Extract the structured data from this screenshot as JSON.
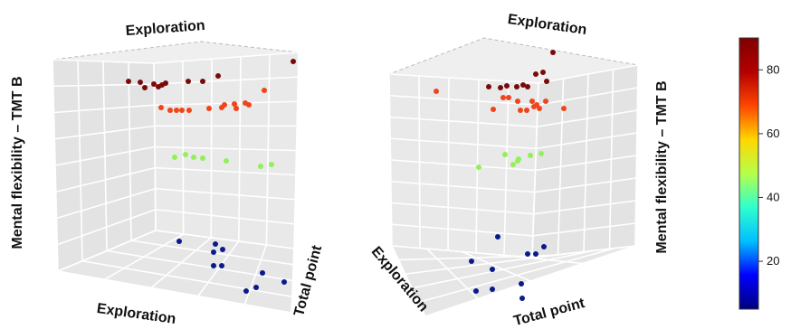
{
  "chart_data": [
    {
      "type": "scatter3d",
      "axis_labels": {
        "x": "Exploration",
        "y": "Total point",
        "z": "Mental flexibility – TMT B",
        "top": "Exploration"
      },
      "grid": true,
      "color_by": "z",
      "groups": [
        {
          "z": 85,
          "color": "#7a0a0a",
          "count": 10
        },
        {
          "z": 75,
          "color": "#f0441a",
          "count": 13
        },
        {
          "z": 55,
          "color": "#93f05a",
          "count": 7
        },
        {
          "z": 15,
          "color": "#0a1a8c",
          "count": 10
        }
      ]
    },
    {
      "type": "scatter3d",
      "axis_labels": {
        "x": "Exploration",
        "y": "Total point",
        "z": "Mental flexibility – TMT B",
        "top": "Exploration"
      },
      "grid": true,
      "color_by": "z",
      "groups": [
        {
          "z": 85,
          "color": "#7a0a0a",
          "count": 10
        },
        {
          "z": 75,
          "color": "#f0441a",
          "count": 13
        },
        {
          "z": 55,
          "color": "#93f05a",
          "count": 7
        },
        {
          "z": 15,
          "color": "#0a1a8c",
          "count": 10
        }
      ]
    }
  ],
  "colorbar": {
    "ticks": [
      "80",
      "60",
      "40",
      "20"
    ],
    "tick_values": [
      80,
      60,
      40,
      20
    ],
    "range": [
      5,
      90
    ],
    "colors": [
      "#00007f",
      "#0000ff",
      "#00bfff",
      "#2fffce",
      "#b6ff49",
      "#ffd700",
      "#ff4500",
      "#b40000",
      "#7f0000"
    ]
  }
}
